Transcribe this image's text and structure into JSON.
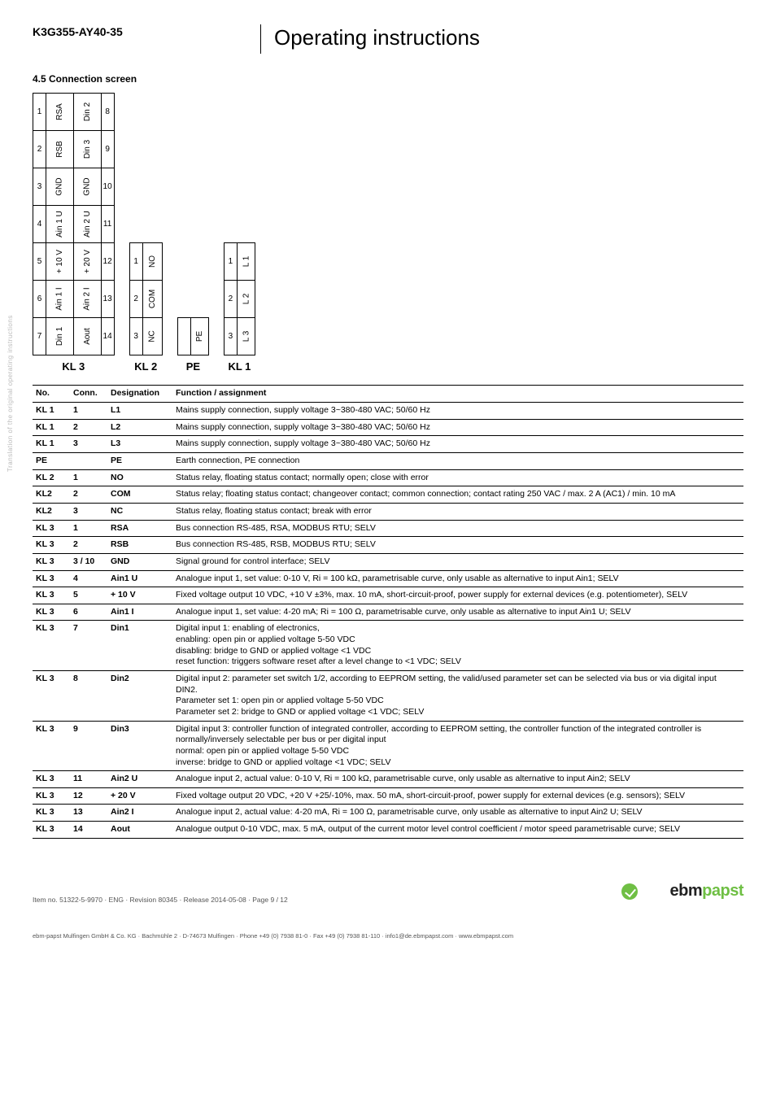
{
  "header": {
    "part_number": "K3G355-AY40-35",
    "title": "Operating instructions"
  },
  "section_title": "4.5 Connection screen",
  "diagram": {
    "kl3_left": {
      "nums": [
        "1",
        "2",
        "3",
        "4",
        "5",
        "6",
        "7"
      ],
      "labels": [
        "RSA",
        "RSB",
        "GND",
        "Ain 1 U",
        "+ 10 V",
        "Ain 1 I",
        "Din 1"
      ]
    },
    "kl3_right": {
      "nums": [
        "8",
        "9",
        "10",
        "11",
        "12",
        "13",
        "14"
      ],
      "labels": [
        "Din 2",
        "Din 3",
        "GND",
        "Ain 2 U",
        "+ 20 V",
        "Ain 2 I",
        "Aout"
      ]
    },
    "kl2": {
      "nums": [
        "1",
        "2",
        "3"
      ],
      "labels": [
        "NO",
        "COM",
        "NC"
      ]
    },
    "pe": {
      "nums": [
        ""
      ],
      "labels": [
        "PE"
      ]
    },
    "kl1": {
      "nums": [
        "1",
        "2",
        "3"
      ],
      "labels": [
        "L 1",
        "L 2",
        "L 3"
      ]
    },
    "captions": {
      "kl3": "KL 3",
      "kl2": "KL 2",
      "pe": "PE",
      "kl1": "KL 1"
    }
  },
  "table": {
    "headers": [
      "No.",
      "Conn.",
      "Designation",
      "Function / assignment"
    ],
    "rows": [
      [
        "KL 1",
        "1",
        "L1",
        "Mains supply connection, supply voltage 3~380-480 VAC; 50/60 Hz"
      ],
      [
        "KL 1",
        "2",
        "L2",
        "Mains supply connection, supply voltage 3~380-480 VAC; 50/60 Hz"
      ],
      [
        "KL 1",
        "3",
        "L3",
        "Mains supply connection, supply voltage 3~380-480 VAC; 50/60 Hz"
      ],
      [
        "PE",
        "",
        "PE",
        "Earth connection, PE connection"
      ],
      [
        "KL 2",
        "1",
        "NO",
        "Status relay, floating status contact; normally open; close with error"
      ],
      [
        "KL2",
        "2",
        "COM",
        "Status relay; floating status contact; changeover contact; common connection; contact rating 250 VAC / max. 2 A (AC1) / min. 10 mA"
      ],
      [
        "KL2",
        "3",
        "NC",
        "Status relay, floating status contact; break with error"
      ],
      [
        "KL 3",
        "1",
        "RSA",
        "Bus connection RS-485, RSA, MODBUS RTU; SELV"
      ],
      [
        "KL 3",
        "2",
        "RSB",
        "Bus connection RS-485, RSB, MODBUS RTU; SELV"
      ],
      [
        "KL 3",
        "3 / 10",
        "GND",
        "Signal ground for control interface; SELV"
      ],
      [
        "KL 3",
        "4",
        "Ain1 U",
        "Analogue input 1, set value: 0-10 V, Ri = 100 kΩ, parametrisable curve, only usable as alternative to input Ain1; SELV"
      ],
      [
        "KL 3",
        "5",
        "+ 10 V",
        "Fixed voltage output 10 VDC, +10 V ±3%, max. 10 mA, short-circuit-proof, power supply for external devices (e.g. potentiometer), SELV"
      ],
      [
        "KL 3",
        "6",
        "Ain1 I",
        "Analogue input 1, set value: 4-20 mA; Ri = 100 Ω, parametrisable curve, only usable as alternative to input Ain1 U; SELV"
      ],
      [
        "KL 3",
        "7",
        "Din1",
        "Digital input 1: enabling of electronics,\nenabling: open pin or applied voltage 5-50 VDC\ndisabling: bridge to GND or applied voltage <1 VDC\nreset function: triggers software reset after a level change to <1 VDC; SELV"
      ],
      [
        "KL 3",
        "8",
        "Din2",
        "Digital input 2: parameter set switch 1/2, according to EEPROM setting, the valid/used parameter set can be selected via bus or via digital input DIN2.\nParameter set 1: open pin or applied voltage 5-50 VDC\nParameter set 2: bridge to GND or applied voltage <1 VDC; SELV"
      ],
      [
        "KL 3",
        "9",
        "Din3",
        "Digital input 3: controller function of integrated controller, according to EEPROM setting, the controller function of the integrated controller is normally/inversely selectable per bus or per digital input\nnormal: open pin or applied voltage 5-50 VDC\ninverse: bridge to GND or applied voltage <1 VDC; SELV"
      ],
      [
        "KL 3",
        "11",
        "Ain2 U",
        "Analogue input 2, actual value: 0-10 V, Ri = 100 kΩ, parametrisable curve, only usable as alternative to input Ain2; SELV"
      ],
      [
        "KL 3",
        "12",
        "+ 20 V",
        "Fixed voltage output 20 VDC, +20 V +25/-10%, max. 50 mA, short-circuit-proof, power supply for external devices (e.g. sensors); SELV"
      ],
      [
        "KL 3",
        "13",
        "Ain2 I",
        "Analogue input 2, actual value: 4-20 mA, Ri = 100 Ω, parametrisable curve, only usable as alternative to input Ain2 U; SELV"
      ],
      [
        "KL 3",
        "14",
        "Aout",
        "Analogue output 0-10 VDC, max. 5 mA, output of the current motor level control coefficient / motor speed parametrisable curve; SELV"
      ]
    ]
  },
  "footer": {
    "line1": "Item no. 51322-5-9970 · ENG · Revision 80345 · Release 2014-05-08 · Page 9 / 12",
    "line2": "ebm-papst Mulfingen GmbH & Co. KG · Bachmühle 2 · D-74673 Mulfingen · Phone +49 (0) 7938 81-0 · Fax +49 (0) 7938 81-110 · info1@de.ebmpapst.com · www.ebmpapst.com",
    "logo_ebm": "ebm",
    "logo_papst": "papst"
  },
  "sidebar_label": "Translation of the original operating instructions",
  "colors": {
    "text": "#000000",
    "accent_green": "#6fbf44",
    "muted": "#555555",
    "sidebar": "#bbbbbb"
  }
}
